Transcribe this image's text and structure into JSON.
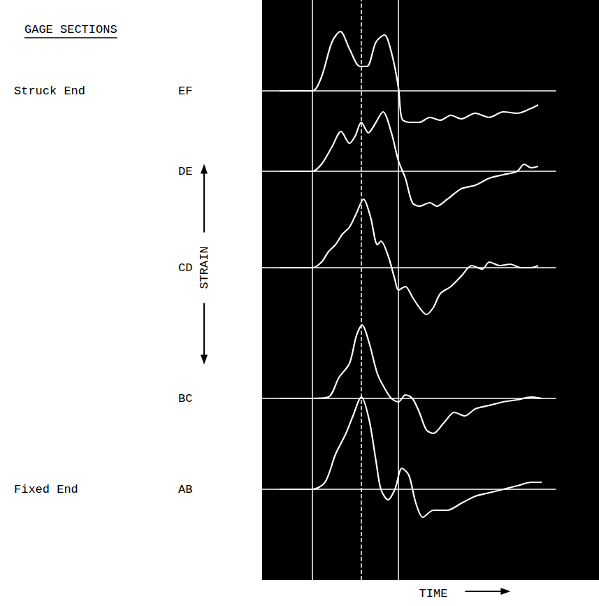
{
  "chart_data": {
    "type": "line",
    "title": "GAGE SECTIONS",
    "xlabel": "TIME",
    "ylabel": "STRAIN",
    "annotations": [
      {
        "text": "Struck End",
        "series": "EF"
      },
      {
        "text": "Fixed End",
        "series": "AB"
      }
    ],
    "tick_labels": false,
    "grid": false,
    "xlim": [
      0,
      105
    ],
    "reference_lines": [
      {
        "x": 18,
        "line_style": "solid",
        "color": "#ffffff"
      },
      {
        "x": 35.5,
        "line_style": "dashed",
        "color": "#ffffff"
      },
      {
        "x": 48.75,
        "line_style": "solid",
        "color": "#ffffff"
      }
    ],
    "series": [
      {
        "name": "EF",
        "color": "#ffffff",
        "ylim": [
          -8,
          12
        ],
        "x": [
          6.25,
          18,
          21.25,
          25,
          28,
          31.25,
          35,
          37.5,
          40.75,
          43.75,
          46.25,
          48.75,
          50,
          52.5,
          56.25,
          60,
          63.75,
          67.5,
          71.25,
          76.25,
          81.25,
          86.25,
          91.25,
          96.25,
          98.75
        ],
        "values": [
          0,
          0,
          2,
          7,
          8.5,
          6,
          3.5,
          3.5,
          7,
          8,
          5.5,
          0.5,
          -4,
          -4.5,
          -4.5,
          -3.8,
          -4.2,
          -3.5,
          -4,
          -3.2,
          -3.8,
          -3,
          -3.2,
          -2.5,
          -2
        ]
      },
      {
        "name": "DE",
        "color": "#ffffff",
        "ylim": [
          -8,
          12
        ],
        "x": [
          6.25,
          18,
          21.25,
          25,
          28.25,
          31.25,
          33.25,
          35.5,
          38,
          40,
          43.25,
          46.25,
          48.75,
          51.25,
          53.75,
          56.25,
          60,
          62.5,
          66.25,
          71.25,
          76.25,
          81.25,
          86.25,
          91.25,
          93.75,
          96.25,
          98.75
        ],
        "values": [
          0,
          0,
          1,
          3.5,
          5.7,
          4,
          5,
          7,
          5.5,
          6.5,
          8.5,
          5.5,
          1.5,
          -1,
          -4.5,
          -5,
          -4.5,
          -5,
          -4,
          -2.5,
          -2,
          -1,
          -0.5,
          0,
          1,
          0.5,
          0.7
        ]
      },
      {
        "name": "CD",
        "color": "#ffffff",
        "ylim": [
          -8,
          12
        ],
        "x": [
          6.25,
          18,
          21.25,
          23.75,
          26.25,
          28.75,
          31.25,
          33.75,
          36.25,
          38.75,
          41.25,
          42.5,
          45,
          47.5,
          48.75,
          51.25,
          53.75,
          56.25,
          58.75,
          61.25,
          63.75,
          67.5,
          71.25,
          75,
          78.75,
          81.25,
          85,
          88.75,
          92.5,
          96.25,
          98.75
        ],
        "values": [
          0,
          0,
          0.8,
          2.3,
          3.3,
          4.8,
          5.8,
          7.8,
          9.8,
          7.3,
          3.3,
          3.8,
          1.8,
          -1.7,
          -3.2,
          -2.7,
          -4.2,
          -5.7,
          -6.7,
          -5.7,
          -3.7,
          -2.7,
          -1.2,
          0.3,
          -0.2,
          0.8,
          0.3,
          0.5,
          0,
          0,
          0.3
        ]
      },
      {
        "name": "BC",
        "color": "#ffffff",
        "ylim": [
          -8,
          14
        ],
        "x": [
          6.25,
          18,
          23.75,
          27.5,
          31.25,
          33.75,
          35.75,
          38.25,
          41.25,
          43.75,
          46.25,
          48.75,
          51.25,
          53.75,
          56.25,
          58.75,
          61.25,
          65,
          68.75,
          72.5,
          76.25,
          81.25,
          86.25,
          91.25,
          96.25,
          100
        ],
        "values": [
          0,
          0,
          0.2,
          3,
          5,
          9,
          10.5,
          8,
          3.5,
          1.5,
          0,
          -0.5,
          0.5,
          0,
          -2,
          -4.5,
          -5,
          -3.5,
          -2,
          -2.5,
          -1.5,
          -1,
          -0.5,
          -0.2,
          0.2,
          0
        ]
      },
      {
        "name": "AB",
        "color": "#ffffff",
        "ylim": [
          -8,
          15
        ],
        "x": [
          6.25,
          18,
          22.5,
          26.25,
          30,
          32.5,
          35.5,
          38.25,
          40.75,
          42.5,
          45,
          47.5,
          50,
          52.5,
          55,
          57.5,
          61.25,
          66.25,
          71.25,
          76.25,
          81.25,
          86.25,
          91.25,
          96.25,
          100
        ],
        "values": [
          0,
          0,
          1,
          5,
          8,
          10.5,
          13.2,
          10,
          4,
          0,
          -1.5,
          0,
          3,
          2,
          -2,
          -4,
          -3,
          -3,
          -2,
          -1,
          -0.5,
          0,
          0.5,
          1,
          1
        ]
      }
    ]
  }
}
